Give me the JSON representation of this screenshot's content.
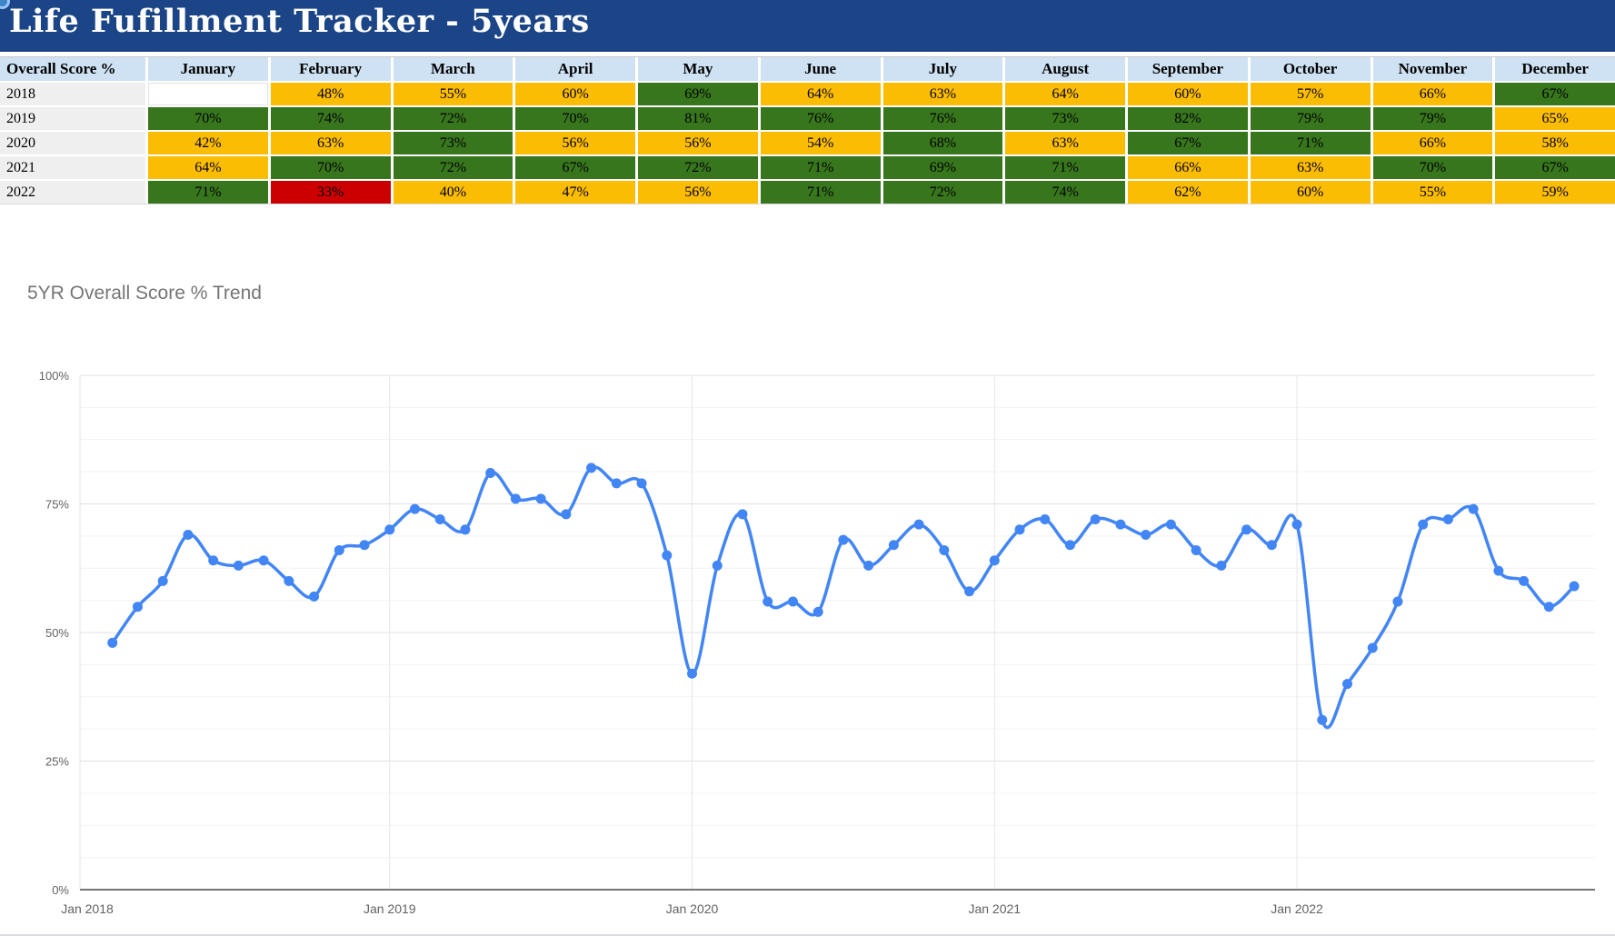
{
  "title_bar": {
    "title": "Life Fufillment Tracker - 5years"
  },
  "table": {
    "corner_label": "Overall Score %",
    "months": [
      "January",
      "February",
      "March",
      "April",
      "May",
      "June",
      "July",
      "August",
      "September",
      "October",
      "November",
      "December"
    ],
    "rows": [
      {
        "year": "2018",
        "cells": [
          {
            "v": "",
            "s": "blank"
          },
          {
            "v": "48%",
            "s": "yellow"
          },
          {
            "v": "55%",
            "s": "yellow"
          },
          {
            "v": "60%",
            "s": "yellow"
          },
          {
            "v": "69%",
            "s": "green"
          },
          {
            "v": "64%",
            "s": "yellow"
          },
          {
            "v": "63%",
            "s": "yellow"
          },
          {
            "v": "64%",
            "s": "yellow"
          },
          {
            "v": "60%",
            "s": "yellow"
          },
          {
            "v": "57%",
            "s": "yellow"
          },
          {
            "v": "66%",
            "s": "yellow"
          },
          {
            "v": "67%",
            "s": "green"
          }
        ]
      },
      {
        "year": "2019",
        "cells": [
          {
            "v": "70%",
            "s": "green"
          },
          {
            "v": "74%",
            "s": "green"
          },
          {
            "v": "72%",
            "s": "green"
          },
          {
            "v": "70%",
            "s": "green"
          },
          {
            "v": "81%",
            "s": "green"
          },
          {
            "v": "76%",
            "s": "green"
          },
          {
            "v": "76%",
            "s": "green"
          },
          {
            "v": "73%",
            "s": "green"
          },
          {
            "v": "82%",
            "s": "green"
          },
          {
            "v": "79%",
            "s": "green"
          },
          {
            "v": "79%",
            "s": "green"
          },
          {
            "v": "65%",
            "s": "yellow"
          }
        ]
      },
      {
        "year": "2020",
        "cells": [
          {
            "v": "42%",
            "s": "yellow"
          },
          {
            "v": "63%",
            "s": "yellow"
          },
          {
            "v": "73%",
            "s": "green"
          },
          {
            "v": "56%",
            "s": "yellow"
          },
          {
            "v": "56%",
            "s": "yellow"
          },
          {
            "v": "54%",
            "s": "yellow"
          },
          {
            "v": "68%",
            "s": "green"
          },
          {
            "v": "63%",
            "s": "yellow"
          },
          {
            "v": "67%",
            "s": "green"
          },
          {
            "v": "71%",
            "s": "green"
          },
          {
            "v": "66%",
            "s": "yellow"
          },
          {
            "v": "58%",
            "s": "yellow"
          }
        ]
      },
      {
        "year": "2021",
        "cells": [
          {
            "v": "64%",
            "s": "yellow"
          },
          {
            "v": "70%",
            "s": "green"
          },
          {
            "v": "72%",
            "s": "green"
          },
          {
            "v": "67%",
            "s": "green"
          },
          {
            "v": "72%",
            "s": "green"
          },
          {
            "v": "71%",
            "s": "green"
          },
          {
            "v": "69%",
            "s": "green"
          },
          {
            "v": "71%",
            "s": "green"
          },
          {
            "v": "66%",
            "s": "yellow"
          },
          {
            "v": "63%",
            "s": "yellow"
          },
          {
            "v": "70%",
            "s": "green"
          },
          {
            "v": "67%",
            "s": "green"
          }
        ]
      },
      {
        "year": "2022",
        "cells": [
          {
            "v": "71%",
            "s": "green"
          },
          {
            "v": "33%",
            "s": "red"
          },
          {
            "v": "40%",
            "s": "yellow"
          },
          {
            "v": "47%",
            "s": "yellow"
          },
          {
            "v": "56%",
            "s": "yellow"
          },
          {
            "v": "71%",
            "s": "green"
          },
          {
            "v": "72%",
            "s": "green"
          },
          {
            "v": "74%",
            "s": "green"
          },
          {
            "v": "62%",
            "s": "yellow"
          },
          {
            "v": "60%",
            "s": "yellow"
          },
          {
            "v": "55%",
            "s": "yellow"
          },
          {
            "v": "59%",
            "s": "yellow"
          }
        ]
      }
    ]
  },
  "chart_data": {
    "type": "line",
    "title": "5YR Overall Score % Trend",
    "x_tick_labels": [
      "Jan 2018",
      "Jan 2019",
      "Jan 2020",
      "Jan 2021",
      "Jan 2022"
    ],
    "y_tick_labels": [
      "0%",
      "25%",
      "50%",
      "75%",
      "100%"
    ],
    "ylim": [
      0,
      100
    ],
    "grid": true,
    "legend": "none",
    "missing_points": [
      "Jan 2018"
    ],
    "series": [
      {
        "name": "Overall Score %",
        "start": "Feb 2018",
        "end": "Dec 2022",
        "values": [
          48,
          55,
          60,
          69,
          64,
          63,
          64,
          60,
          57,
          66,
          67,
          70,
          74,
          72,
          70,
          81,
          76,
          76,
          73,
          82,
          79,
          79,
          65,
          42,
          63,
          73,
          56,
          56,
          54,
          68,
          63,
          67,
          71,
          66,
          58,
          64,
          70,
          72,
          67,
          72,
          71,
          69,
          71,
          66,
          63,
          70,
          67,
          71,
          33,
          40,
          47,
          56,
          71,
          72,
          74,
          62,
          60,
          55,
          59
        ]
      }
    ]
  },
  "colors": {
    "title_bar_bg": "#1c4587",
    "header_row_bg": "#cfe2f3",
    "year_col_bg": "#efefef",
    "cell_green": "#38761d",
    "cell_yellow": "#fbbc04",
    "cell_red": "#cc0000",
    "line": "#4285f4",
    "chart_title_text": "#757575",
    "axis_text": "#616161"
  }
}
